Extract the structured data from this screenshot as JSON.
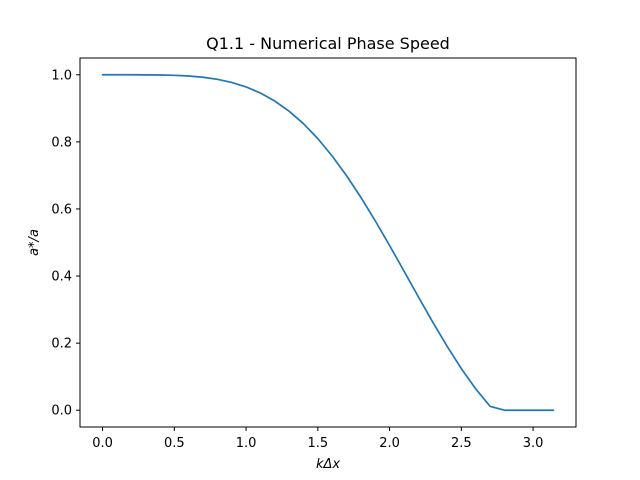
{
  "chart_data": {
    "type": "line",
    "title": "Q1.1 - Numerical Phase Speed",
    "xlabel": "kΔx",
    "ylabel": "a*/a",
    "xlim": [
      -0.157,
      3.299
    ],
    "ylim": [
      -0.05,
      1.05
    ],
    "grid": false,
    "xticks": [
      0.0,
      0.5,
      1.0,
      1.5,
      2.0,
      2.5,
      3.0
    ],
    "xtick_labels": [
      "0.0",
      "0.5",
      "1.0",
      "1.5",
      "2.0",
      "2.5",
      "3.0"
    ],
    "yticks": [
      0.0,
      0.2,
      0.4,
      0.6,
      0.8,
      1.0
    ],
    "ytick_labels": [
      "0.0",
      "0.2",
      "0.4",
      "0.6",
      "0.8",
      "1.0"
    ],
    "colors": {
      "series": "#1f77b4"
    },
    "series": [
      {
        "x": [
          0.0,
          0.1,
          0.2,
          0.3,
          0.4,
          0.5,
          0.6,
          0.7,
          0.8,
          0.9,
          1.0,
          1.1,
          1.2,
          1.3,
          1.4,
          1.5,
          1.6,
          1.7,
          1.8,
          1.9,
          2.0,
          2.1,
          2.2,
          2.3,
          2.4,
          2.5,
          2.6,
          2.7,
          2.8,
          2.9,
          3.0,
          3.1,
          3.1416
        ],
        "y": [
          1.0,
          1.0,
          1.0,
          0.9998,
          0.9994,
          0.9984,
          0.9964,
          0.9926,
          0.9865,
          0.9772,
          0.9639,
          0.9457,
          0.9218,
          0.8914,
          0.8542,
          0.8096,
          0.7579,
          0.6993,
          0.6346,
          0.5648,
          0.4911,
          0.4152,
          0.3386,
          0.2633,
          0.1912,
          0.1241,
          0.0638,
          0.0118,
          0.0,
          0.0,
          0.0,
          0.0,
          0.0
        ]
      }
    ]
  }
}
